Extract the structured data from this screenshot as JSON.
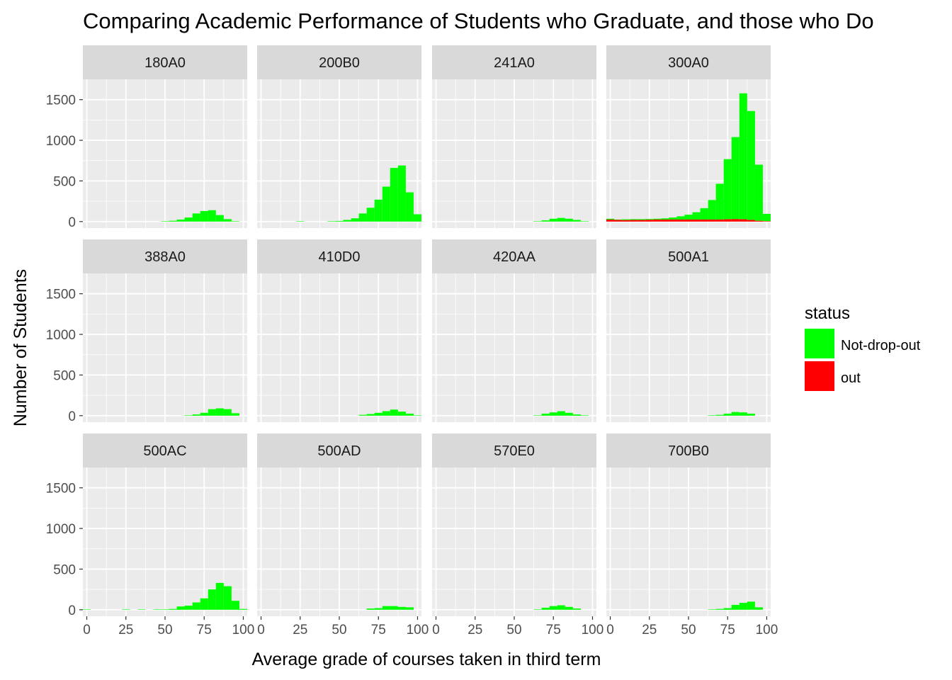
{
  "chart_data": {
    "type": "bar",
    "subtype": "faceted-stacked-histogram",
    "title": "Comparing Academic Performance of Students who Graduate, and those who Do",
    "xlabel": "Average grade of courses taken in third term",
    "ylabel": "Number of Students",
    "xlim": [
      -2.5,
      102.5
    ],
    "ylim": [
      -80,
      1750
    ],
    "x_ticks": [
      0,
      25,
      50,
      75,
      100
    ],
    "y_ticks": [
      0,
      500,
      1000,
      1500
    ],
    "bin_width": 5,
    "bin_centers": [
      0,
      5,
      10,
      15,
      20,
      25,
      30,
      35,
      40,
      45,
      50,
      55,
      60,
      65,
      70,
      75,
      80,
      85,
      90,
      95,
      100
    ],
    "grid": true,
    "legend": {
      "title": "status",
      "position": "right",
      "entries": [
        {
          "label": "Not-drop-out",
          "color": "#00ff00"
        },
        {
          "label": "out",
          "color": "#ff0000"
        }
      ]
    },
    "colors": {
      "Not-drop-out": "#00ff00",
      "out": "#ff0000",
      "panel_background": "#ebebeb",
      "strip_background": "#d9d9d9",
      "gridline": "#ffffff"
    },
    "facets": [
      {
        "label": "180A0",
        "series": [
          {
            "name": "Not-drop-out",
            "values": [
              0,
              0,
              0,
              0,
              0,
              0,
              0,
              0,
              0,
              0,
              5,
              10,
              25,
              50,
              100,
              130,
              140,
              80,
              30,
              5,
              0
            ]
          },
          {
            "name": "out",
            "values": [
              0,
              0,
              0,
              0,
              0,
              0,
              0,
              0,
              0,
              0,
              0,
              0,
              0,
              0,
              0,
              0,
              0,
              0,
              0,
              0,
              0
            ]
          }
        ]
      },
      {
        "label": "200B0",
        "series": [
          {
            "name": "Not-drop-out",
            "values": [
              0,
              0,
              0,
              0,
              0,
              5,
              0,
              0,
              0,
              5,
              8,
              20,
              40,
              100,
              170,
              270,
              430,
              660,
              690,
              360,
              90
            ]
          },
          {
            "name": "out",
            "values": [
              0,
              0,
              0,
              0,
              0,
              0,
              0,
              0,
              0,
              0,
              0,
              0,
              0,
              0,
              0,
              0,
              0,
              0,
              0,
              0,
              0
            ]
          }
        ]
      },
      {
        "label": "241A0",
        "series": [
          {
            "name": "Not-drop-out",
            "values": [
              0,
              0,
              0,
              0,
              0,
              0,
              0,
              0,
              0,
              0,
              0,
              0,
              0,
              5,
              15,
              35,
              45,
              35,
              20,
              5,
              0
            ]
          },
          {
            "name": "out",
            "values": [
              0,
              0,
              0,
              0,
              0,
              0,
              0,
              0,
              0,
              0,
              0,
              0,
              0,
              0,
              0,
              0,
              0,
              0,
              0,
              0,
              0
            ]
          }
        ]
      },
      {
        "label": "300A0",
        "series": [
          {
            "name": "Not-drop-out",
            "values": [
              10,
              5,
              10,
              10,
              10,
              10,
              10,
              15,
              25,
              40,
              60,
              90,
              140,
              240,
              440,
              740,
              1010,
              1550,
              1340,
              690,
              90
            ]
          },
          {
            "name": "out",
            "values": [
              25,
              20,
              18,
              20,
              20,
              22,
              25,
              25,
              25,
              25,
              25,
              25,
              25,
              25,
              25,
              28,
              30,
              28,
              20,
              10,
              5
            ]
          }
        ]
      },
      {
        "label": "388A0",
        "series": [
          {
            "name": "Not-drop-out",
            "values": [
              0,
              0,
              0,
              0,
              0,
              0,
              0,
              0,
              0,
              0,
              0,
              0,
              0,
              5,
              15,
              35,
              80,
              90,
              80,
              30,
              0
            ]
          },
          {
            "name": "out",
            "values": [
              0,
              0,
              0,
              0,
              0,
              0,
              0,
              0,
              0,
              0,
              0,
              0,
              0,
              0,
              0,
              0,
              0,
              0,
              0,
              0,
              0
            ]
          }
        ]
      },
      {
        "label": "410D0",
        "series": [
          {
            "name": "Not-drop-out",
            "values": [
              0,
              0,
              0,
              0,
              0,
              0,
              0,
              0,
              0,
              0,
              0,
              0,
              0,
              10,
              20,
              35,
              55,
              75,
              50,
              25,
              5
            ]
          },
          {
            "name": "out",
            "values": [
              0,
              0,
              0,
              0,
              0,
              0,
              0,
              0,
              0,
              0,
              0,
              0,
              0,
              0,
              0,
              0,
              0,
              0,
              0,
              0,
              0
            ]
          }
        ]
      },
      {
        "label": "420AA",
        "series": [
          {
            "name": "Not-drop-out",
            "values": [
              0,
              0,
              0,
              0,
              0,
              0,
              0,
              0,
              0,
              0,
              0,
              0,
              0,
              5,
              25,
              40,
              55,
              35,
              15,
              5,
              0
            ]
          },
          {
            "name": "out",
            "values": [
              0,
              0,
              0,
              0,
              0,
              0,
              0,
              0,
              0,
              0,
              0,
              0,
              0,
              0,
              0,
              0,
              0,
              0,
              0,
              0,
              0
            ]
          }
        ]
      },
      {
        "label": "500A1",
        "series": [
          {
            "name": "Not-drop-out",
            "values": [
              0,
              0,
              0,
              0,
              0,
              0,
              0,
              0,
              0,
              0,
              0,
              0,
              0,
              5,
              10,
              25,
              45,
              40,
              25,
              0,
              0
            ]
          },
          {
            "name": "out",
            "values": [
              0,
              0,
              0,
              0,
              0,
              0,
              0,
              0,
              0,
              0,
              0,
              0,
              0,
              0,
              0,
              0,
              0,
              0,
              0,
              0,
              0
            ]
          }
        ]
      },
      {
        "label": "500AC",
        "series": [
          {
            "name": "Not-drop-out",
            "values": [
              5,
              0,
              0,
              0,
              0,
              5,
              0,
              5,
              0,
              5,
              5,
              10,
              40,
              50,
              90,
              140,
              250,
              330,
              290,
              110,
              10
            ]
          },
          {
            "name": "out",
            "values": [
              0,
              0,
              0,
              0,
              0,
              0,
              0,
              0,
              0,
              0,
              0,
              0,
              0,
              0,
              0,
              0,
              0,
              0,
              0,
              0,
              0
            ]
          }
        ]
      },
      {
        "label": "500AD",
        "series": [
          {
            "name": "Not-drop-out",
            "values": [
              0,
              0,
              0,
              0,
              0,
              0,
              0,
              0,
              0,
              0,
              0,
              0,
              0,
              0,
              15,
              20,
              45,
              45,
              35,
              30,
              0
            ]
          },
          {
            "name": "out",
            "values": [
              0,
              0,
              0,
              0,
              0,
              0,
              0,
              0,
              0,
              0,
              0,
              0,
              0,
              0,
              0,
              0,
              0,
              0,
              0,
              0,
              0
            ]
          }
        ]
      },
      {
        "label": "570E0",
        "series": [
          {
            "name": "Not-drop-out",
            "values": [
              0,
              0,
              0,
              0,
              0,
              0,
              0,
              0,
              0,
              0,
              0,
              0,
              0,
              5,
              25,
              45,
              55,
              35,
              15,
              0,
              0
            ]
          },
          {
            "name": "out",
            "values": [
              0,
              0,
              0,
              0,
              0,
              0,
              0,
              0,
              0,
              0,
              0,
              0,
              0,
              0,
              0,
              0,
              0,
              0,
              0,
              0,
              0
            ]
          }
        ]
      },
      {
        "label": "700B0",
        "series": [
          {
            "name": "Not-drop-out",
            "values": [
              0,
              0,
              0,
              0,
              0,
              0,
              0,
              0,
              0,
              0,
              0,
              0,
              0,
              5,
              10,
              20,
              60,
              85,
              100,
              30,
              0
            ]
          },
          {
            "name": "out",
            "values": [
              0,
              0,
              0,
              0,
              0,
              0,
              0,
              0,
              0,
              0,
              0,
              0,
              0,
              0,
              0,
              0,
              0,
              0,
              0,
              0,
              0
            ]
          }
        ]
      }
    ]
  }
}
